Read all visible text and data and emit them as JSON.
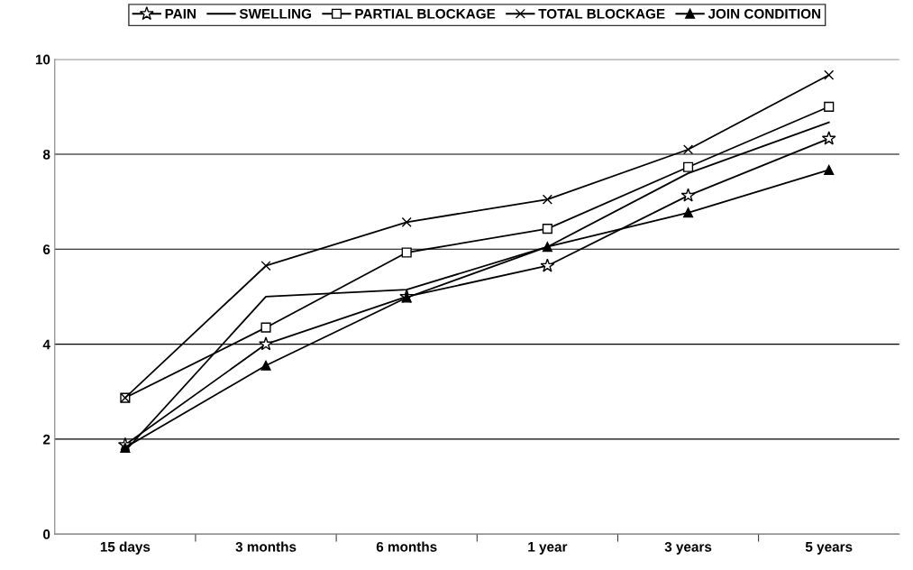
{
  "chart_data": {
    "type": "line",
    "categories": [
      "15 days",
      "3 months",
      "6 months",
      "1 year",
      "3 years",
      "5 years"
    ],
    "series": [
      {
        "name": "PAIN",
        "color": "#000000",
        "marker": "star",
        "values": [
          1.88,
          4.0,
          5.0,
          5.65,
          7.13,
          8.33
        ]
      },
      {
        "name": "SWELLING",
        "color": "#000000",
        "marker": "none",
        "values": [
          1.75,
          5.0,
          5.15,
          6.05,
          7.6,
          8.67
        ]
      },
      {
        "name": "PARTIAL BLOCKAGE",
        "color": "#000000",
        "marker": "square",
        "values": [
          2.87,
          4.35,
          5.93,
          6.43,
          7.73,
          9.0
        ]
      },
      {
        "name": "TOTAL BLOCKAGE",
        "color": "#000000",
        "marker": "cross",
        "values": [
          2.87,
          5.65,
          6.57,
          7.05,
          8.1,
          9.67
        ]
      },
      {
        "name": "JOIN CONDITION",
        "color": "#000000",
        "marker": "triangle",
        "values": [
          1.82,
          3.55,
          4.98,
          6.05,
          6.77,
          7.67
        ]
      }
    ],
    "ylim": [
      0,
      10
    ],
    "yticks": [
      0,
      2,
      4,
      6,
      8,
      10
    ],
    "grid": "y",
    "legend": "top",
    "line_style": "solid"
  }
}
